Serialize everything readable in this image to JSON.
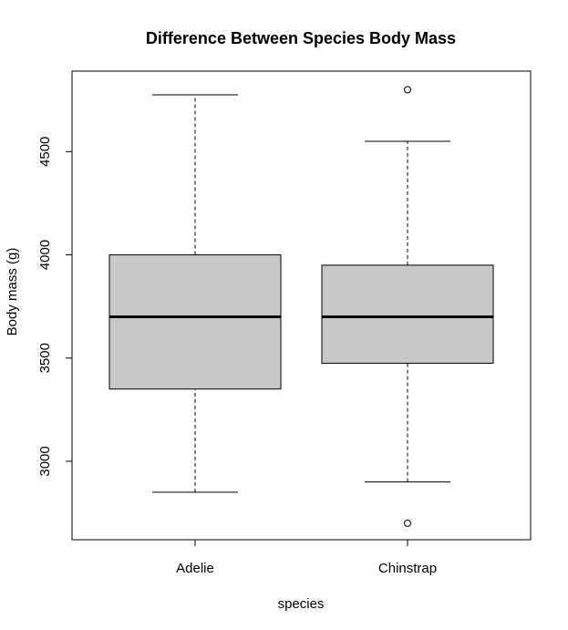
{
  "chart_data": {
    "type": "boxplot",
    "title": "Difference Between Species Body Mass",
    "xlabel": "species",
    "ylabel": "Body mass (g)",
    "categories": [
      "Adelie",
      "Chinstrap"
    ],
    "yticks": [
      3000,
      3500,
      4000,
      4500
    ],
    "ylim": [
      2620,
      4890
    ],
    "grid": false,
    "box_color": "#c8c8c8",
    "boxes": [
      {
        "category": "Adelie",
        "whisker_low": 2850,
        "q1": 3350,
        "median": 3700,
        "q3": 4000,
        "whisker_high": 4775,
        "outliers": []
      },
      {
        "category": "Chinstrap",
        "whisker_low": 2900,
        "q1": 3475,
        "median": 3700,
        "q3": 3950,
        "whisker_high": 4550,
        "outliers": [
          2700,
          4800
        ]
      }
    ]
  }
}
